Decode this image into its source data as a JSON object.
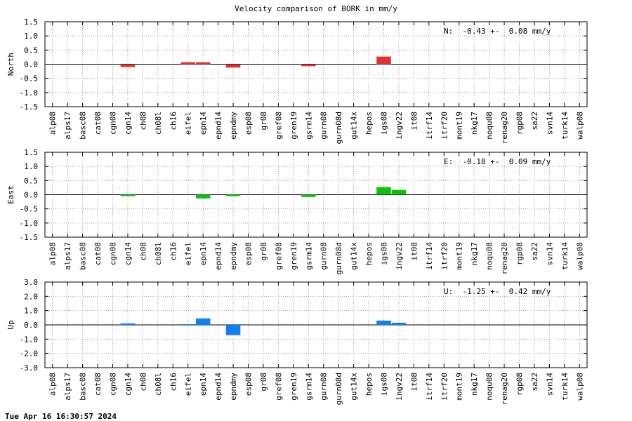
{
  "title": "Velocity comparison of BORK in mm/y",
  "footer": "Tue Apr 16 16:30:57 2024",
  "chart_data": [
    {
      "type": "bar",
      "ylabel": "North",
      "ylim": [
        -1.5,
        1.5
      ],
      "yticks": [
        "1.5",
        "1.0",
        "0.5",
        "0.0",
        "-0.5",
        "-1.0",
        "-1.5"
      ],
      "annotation": "N:  -0.43 +-  0.08 mm/y",
      "color": "#e03030",
      "grid": true,
      "categories": [
        "alp08",
        "alps17",
        "basc08",
        "cat08",
        "cgn08",
        "cgn14",
        "ch08",
        "ch08l",
        "ch16",
        "eifel",
        "epn14",
        "epnd14",
        "epndmy",
        "esp08",
        "gr08",
        "gref08",
        "gren19",
        "gsrm14",
        "gurn08",
        "gurn08d",
        "gut14x",
        "hepos",
        "igs08",
        "ingv22",
        "it08",
        "itrf14",
        "itrf20",
        "mont19",
        "nkg17",
        "noqu08",
        "renag20",
        "rgp08",
        "sa22",
        "svn14",
        "turk14",
        "walp08"
      ],
      "values": [
        null,
        null,
        null,
        null,
        null,
        -0.1,
        null,
        null,
        null,
        0.07,
        0.07,
        null,
        -0.12,
        null,
        null,
        null,
        null,
        -0.07,
        null,
        null,
        null,
        null,
        0.27,
        null,
        null,
        null,
        null,
        null,
        null,
        null,
        null,
        null,
        null,
        null,
        null,
        null
      ]
    },
    {
      "type": "bar",
      "ylabel": "East",
      "ylim": [
        -1.5,
        1.5
      ],
      "yticks": [
        "1.5",
        "1.0",
        "0.5",
        "0.0",
        "-0.5",
        "-1.0",
        "-1.5"
      ],
      "annotation": "E:  -0.18 +-  0.09 mm/y",
      "color": "#10c010",
      "grid": true,
      "categories": [
        "alp08",
        "alps17",
        "basc08",
        "cat08",
        "cgn08",
        "cgn14",
        "ch08",
        "ch08l",
        "ch16",
        "eifel",
        "epn14",
        "epnd14",
        "epndmy",
        "esp08",
        "gr08",
        "gref08",
        "gren19",
        "gsrm14",
        "gurn08",
        "gurn08d",
        "gut14x",
        "hepos",
        "igs08",
        "ingv22",
        "it08",
        "itrf14",
        "itrf20",
        "mont19",
        "nkg17",
        "noqu08",
        "renag20",
        "rgp08",
        "sa22",
        "svn14",
        "turk14",
        "walp08"
      ],
      "values": [
        null,
        null,
        null,
        null,
        null,
        -0.05,
        null,
        null,
        null,
        null,
        -0.13,
        null,
        -0.05,
        null,
        null,
        null,
        null,
        -0.08,
        null,
        null,
        null,
        null,
        0.27,
        0.17,
        null,
        null,
        null,
        null,
        null,
        null,
        null,
        null,
        null,
        null,
        null,
        null
      ]
    },
    {
      "type": "bar",
      "ylabel": "Up",
      "ylim": [
        -3.0,
        3.0
      ],
      "yticks": [
        "3.0",
        "2.0",
        "1.0",
        "0.0",
        "-1.0",
        "-2.0",
        "-3.0"
      ],
      "annotation": "U:  -1.25 +-  0.42 mm/y",
      "color": "#1080f0",
      "grid": true,
      "categories": [
        "alp08",
        "alps17",
        "basc08",
        "cat08",
        "cgn08",
        "cgn14",
        "ch08",
        "ch08l",
        "ch16",
        "eifel",
        "epn14",
        "epnd14",
        "epndmy",
        "esp08",
        "gr08",
        "gref08",
        "gren19",
        "gsrm14",
        "gurn08",
        "gurn08d",
        "gut14x",
        "hepos",
        "igs08",
        "ingv22",
        "it08",
        "itrf14",
        "itrf20",
        "mont19",
        "nkg17",
        "noqu08",
        "renag20",
        "rgp08",
        "sa22",
        "svn14",
        "turk14",
        "walp08"
      ],
      "values": [
        null,
        null,
        null,
        null,
        null,
        0.1,
        null,
        null,
        null,
        0.05,
        0.45,
        null,
        -0.72,
        null,
        null,
        null,
        null,
        null,
        null,
        null,
        null,
        null,
        0.3,
        0.15,
        null,
        null,
        null,
        null,
        null,
        null,
        null,
        null,
        null,
        null,
        null,
        null
      ]
    }
  ]
}
